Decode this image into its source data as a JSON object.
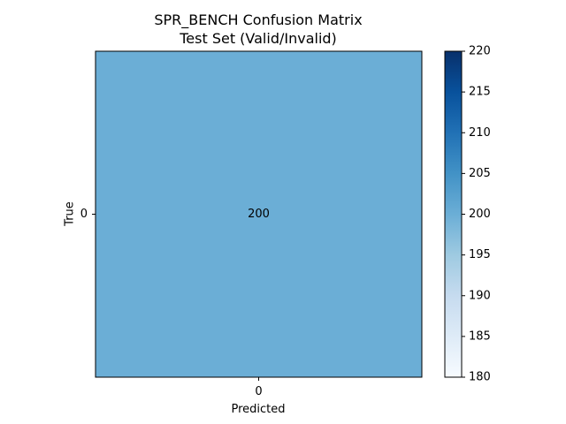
{
  "chart_data": {
    "type": "heatmap",
    "title_line1": "SPR_BENCH Confusion Matrix",
    "title_line2": "Test Set (Valid/Invalid)",
    "xlabel": "Predicted",
    "ylabel": "True",
    "x_categories": [
      "0"
    ],
    "y_categories": [
      "0"
    ],
    "values": [
      [
        200
      ]
    ],
    "colorbar": {
      "range": [
        180,
        220
      ],
      "ticks": [
        "180",
        "185",
        "190",
        "195",
        "200",
        "205",
        "210",
        "215",
        "220"
      ],
      "colormap": "Blues",
      "color_low": "#f7fbff",
      "color_high": "#08306b"
    },
    "cell_color": "#6baed6",
    "grid": false
  }
}
